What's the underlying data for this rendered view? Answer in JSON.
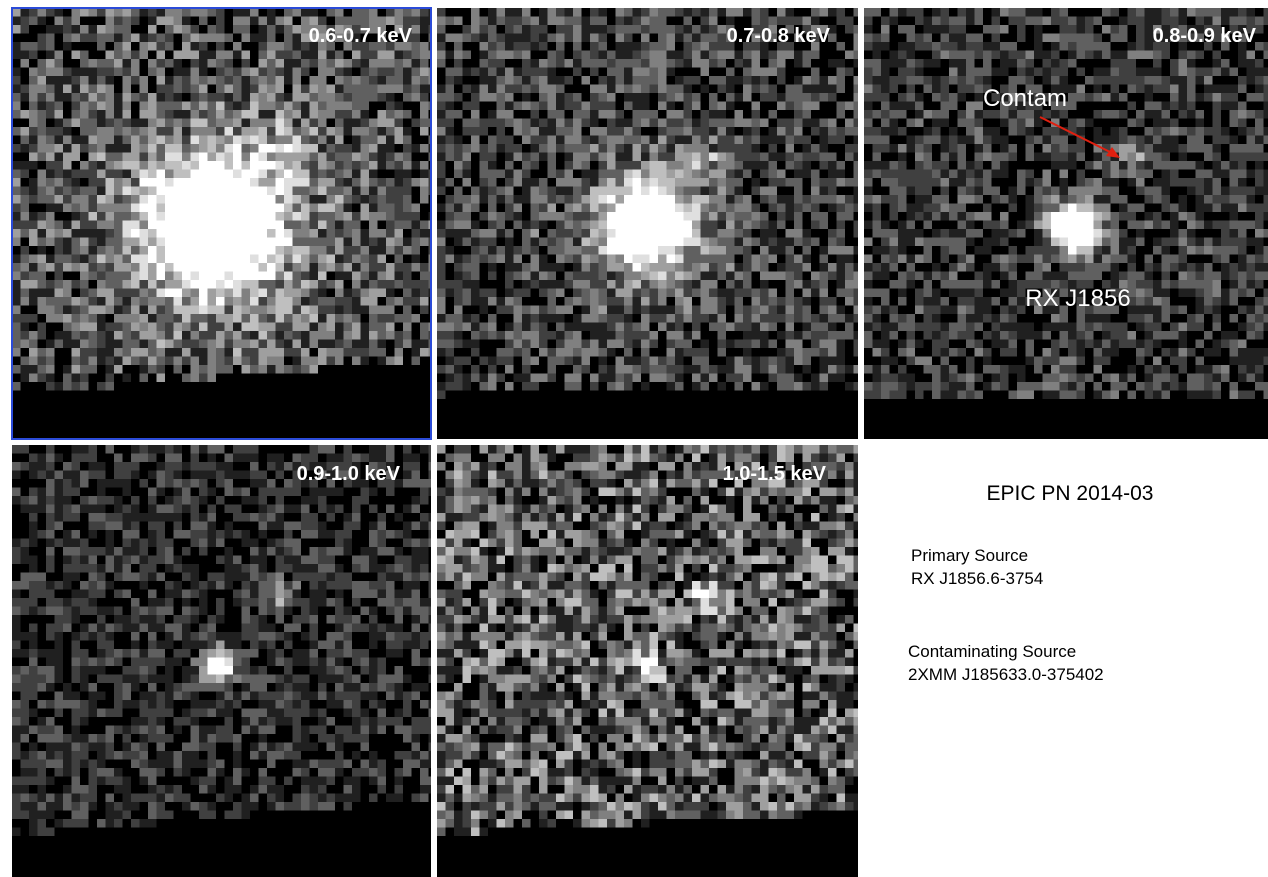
{
  "panels": [
    {
      "label": "0.6-0.7 keV"
    },
    {
      "label": "0.7-0.8 keV"
    },
    {
      "label": "0.8-0.9 keV"
    },
    {
      "label": "0.9-1.0 keV"
    },
    {
      "label": "1.0-1.5 keV"
    }
  ],
  "annotations": {
    "contam": "Contam",
    "primary": "RX J1856"
  },
  "info": {
    "title": "EPIC PN 2014-03",
    "primary_heading": "Primary Source",
    "primary_name": "RX J1856.6-3754",
    "contam_heading": "Contaminating Source",
    "contam_name": "2XMM J185633.0-375402"
  }
}
